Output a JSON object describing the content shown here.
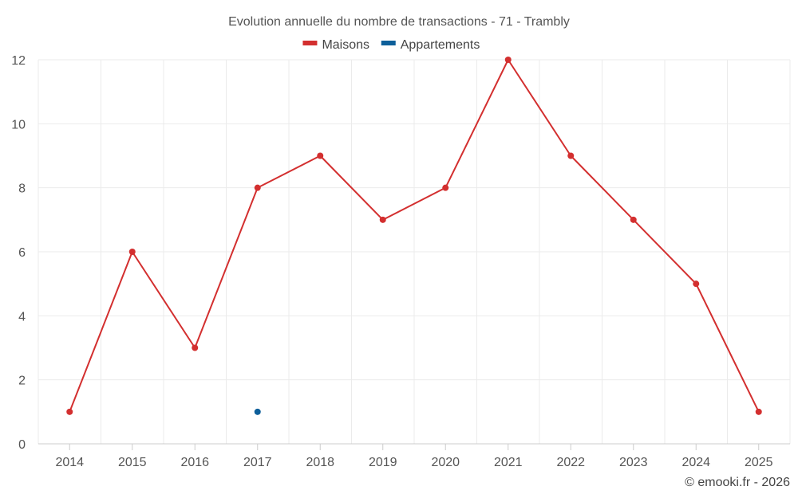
{
  "chart_data": {
    "type": "line",
    "title": "Evolution annuelle du nombre de transactions - 71 - Trambly",
    "categories": [
      "2014",
      "2015",
      "2016",
      "2017",
      "2018",
      "2019",
      "2020",
      "2021",
      "2022",
      "2023",
      "2024",
      "2025"
    ],
    "series": [
      {
        "name": "Maisons",
        "color": "#d32f2f",
        "values": [
          1,
          6,
          3,
          8,
          9,
          7,
          8,
          12,
          9,
          7,
          5,
          1
        ]
      },
      {
        "name": "Appartements",
        "color": "#0d5f9a",
        "values": [
          null,
          null,
          null,
          1,
          null,
          null,
          null,
          null,
          null,
          null,
          null,
          null
        ]
      }
    ],
    "ylim": [
      0,
      12
    ],
    "yticks": [
      0,
      2,
      4,
      6,
      8,
      10,
      12
    ],
    "grid": true,
    "legend_position": "top-center",
    "xlabel": "",
    "ylabel": ""
  },
  "credit": "© emooki.fr - 2026"
}
